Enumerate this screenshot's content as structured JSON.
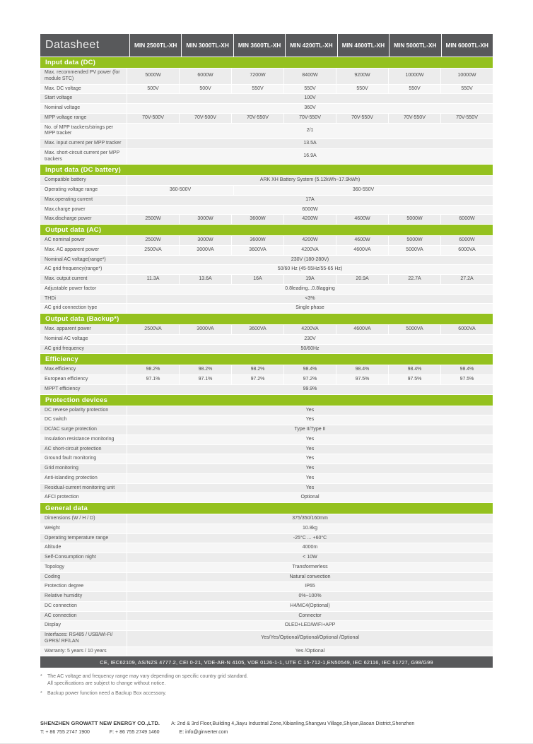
{
  "header": {
    "title": "Datasheet",
    "models": [
      "MIN 2500TL-XH",
      "MIN 3000TL-XH",
      "MIN 3600TL-XH",
      "MIN 4200TL-XH",
      "MIN 4600TL-XH",
      "MIN 5000TL-XH",
      "MIN 6000TL-XH"
    ]
  },
  "colors": {
    "accent_green": "#94c11e",
    "header_gray": "#58595b",
    "row_stripe_dark": "#ececec",
    "row_stripe_light": "#f6f6f6"
  },
  "sections": [
    {
      "title": "Input data (DC)",
      "rows": [
        {
          "label": "Max. recommended PV power (for module STC)",
          "type": "each",
          "values": [
            "5000W",
            "6000W",
            "7200W",
            "8400W",
            "9200W",
            "10000W",
            "10000W"
          ]
        },
        {
          "label": "Max. DC voltage",
          "type": "each",
          "values": [
            "500V",
            "500V",
            "550V",
            "550V",
            "550V",
            "550V",
            "550V"
          ]
        },
        {
          "label": "Start voltage",
          "type": "span",
          "values": [
            "100V"
          ]
        },
        {
          "label": "Nominal voltage",
          "type": "span",
          "values": [
            "360V"
          ]
        },
        {
          "label": "MPP voltage range",
          "type": "each",
          "values": [
            "70V-500V",
            "70V-500V",
            "70V-550V",
            "70V-550V",
            "70V-550V",
            "70V-550V",
            "70V-550V"
          ]
        },
        {
          "label": "No. of MPP trackers/strings per MPP tracker",
          "type": "span",
          "values": [
            "2/1"
          ]
        },
        {
          "label": "Max. input current per MPP tracker",
          "type": "span",
          "values": [
            "13.5A"
          ]
        },
        {
          "label": "Max. short-circuit current per MPP trackers",
          "type": "span",
          "values": [
            "16.9A"
          ]
        }
      ]
    },
    {
      "title": "Input data (DC battery)",
      "rows": [
        {
          "label": "Compatible battery",
          "type": "span",
          "values": [
            "ARK XH Battery System (5.12kWh~17.9kWh)"
          ]
        },
        {
          "label": "Operating voltage range",
          "type": "split",
          "spans": [
            2,
            5
          ],
          "values": [
            "360-500V",
            "360-550V"
          ]
        },
        {
          "label": "Max.operating current",
          "type": "span",
          "values": [
            "17A"
          ]
        },
        {
          "label": "Max.charge power",
          "type": "span",
          "values": [
            "6000W"
          ]
        },
        {
          "label": "Max.discharge power",
          "type": "each",
          "values": [
            "2500W",
            "3000W",
            "3600W",
            "4200W",
            "4600W",
            "5000W",
            "6000W"
          ]
        }
      ]
    },
    {
      "title": "Output data (AC)",
      "rows": [
        {
          "label": "AC nominal power",
          "type": "each",
          "values": [
            "2500W",
            "3000W",
            "3600W",
            "4200W",
            "4600W",
            "5000W",
            "6000W"
          ]
        },
        {
          "label": "Max. AC apparent power",
          "type": "each",
          "values": [
            "2500VA",
            "3000VA",
            "3600VA",
            "4200VA",
            "4600VA",
            "5000VA",
            "6000VA"
          ]
        },
        {
          "label": "Nominal AC voltage(range*)",
          "type": "span",
          "values": [
            "230V (180-280V)"
          ]
        },
        {
          "label": "AC grid frequency(range*)",
          "type": "span",
          "values": [
            "50/60 Hz (45-55Hz/55-65 Hz)"
          ]
        },
        {
          "label": "Max. output current",
          "type": "each",
          "values": [
            "11.3A",
            "13.6A",
            "16A",
            "19A",
            "20.9A",
            "22.7A",
            "27.2A"
          ]
        },
        {
          "label": "Adjustable power factor",
          "type": "span",
          "values": [
            "0.8leading...0.8lagging"
          ]
        },
        {
          "label": "THDi",
          "type": "span",
          "values": [
            "<3%"
          ]
        },
        {
          "label": "AC grid connection type",
          "type": "span",
          "values": [
            "Single phase"
          ]
        }
      ]
    },
    {
      "title": "Output data (Backup*)",
      "rows": [
        {
          "label": "Max. apparent power",
          "type": "each",
          "values": [
            "2500VA",
            "3000VA",
            "3600VA",
            "4200VA",
            "4600VA",
            "5000VA",
            "6000VA"
          ]
        },
        {
          "label": "Nominal AC voltage",
          "type": "span",
          "values": [
            "230V"
          ]
        },
        {
          "label": "AC grid frequency",
          "type": "span",
          "values": [
            "50/60Hz"
          ]
        }
      ]
    },
    {
      "title": "Efficiency",
      "rows": [
        {
          "label": "Max.efficiency",
          "type": "each",
          "values": [
            "98.2%",
            "98.2%",
            "98.2%",
            "98.4%",
            "98.4%",
            "98.4%",
            "98.4%"
          ]
        },
        {
          "label": "European efficiency",
          "type": "each",
          "values": [
            "97.1%",
            "97.1%",
            "97.2%",
            "97.2%",
            "97.5%",
            "97.5%",
            "97.5%"
          ]
        },
        {
          "label": "MPPT efficiency",
          "type": "span",
          "values": [
            "99.9%"
          ]
        }
      ]
    },
    {
      "title": "Protection devices",
      "rows": [
        {
          "label": "DC revese polarity protection",
          "type": "span",
          "values": [
            "Yes"
          ]
        },
        {
          "label": "DC switch",
          "type": "span",
          "values": [
            "Yes"
          ]
        },
        {
          "label": "DC/AC surge protection",
          "type": "span",
          "values": [
            "Type II/Type II"
          ]
        },
        {
          "label": "Insulation resistance monitoring",
          "type": "span",
          "values": [
            "Yes"
          ]
        },
        {
          "label": "AC short-circuit protection",
          "type": "span",
          "values": [
            "Yes"
          ]
        },
        {
          "label": "Ground fault monitoring",
          "type": "span",
          "values": [
            "Yes"
          ]
        },
        {
          "label": "Grid monitoring",
          "type": "span",
          "values": [
            "Yes"
          ]
        },
        {
          "label": "Anti-islanding protection",
          "type": "span",
          "values": [
            "Yes"
          ]
        },
        {
          "label": "Residual-current monitoring unit",
          "type": "span",
          "values": [
            "Yes"
          ]
        },
        {
          "label": "AFCI protection",
          "type": "span",
          "values": [
            "Optional"
          ]
        }
      ]
    },
    {
      "title": "General data",
      "rows": [
        {
          "label": "Dimensions (W / H / D)",
          "type": "span",
          "values": [
            "375/350/160mm"
          ]
        },
        {
          "label": "Weight",
          "type": "span",
          "values": [
            "10.8kg"
          ]
        },
        {
          "label": "Operating temperature range",
          "type": "span",
          "values": [
            "-25°C ... +60°C"
          ]
        },
        {
          "label": "Altitude",
          "type": "span",
          "values": [
            "4000m"
          ]
        },
        {
          "label": "Self-Consumption night",
          "type": "span",
          "values": [
            "< 10W"
          ]
        },
        {
          "label": "Topology",
          "type": "span",
          "values": [
            "Transformerless"
          ]
        },
        {
          "label": "Coding",
          "type": "span",
          "values": [
            "Natural convection"
          ]
        },
        {
          "label": "Protection degree",
          "type": "span",
          "values": [
            "IP65"
          ]
        },
        {
          "label": "Relative humidity",
          "type": "span",
          "values": [
            "0%~100%"
          ]
        },
        {
          "label": "DC connection",
          "type": "span",
          "values": [
            "H4/MC4(Optional)"
          ]
        },
        {
          "label": "AC connection",
          "type": "span",
          "values": [
            "Connector"
          ]
        },
        {
          "label": "Display",
          "type": "span",
          "values": [
            "OLED+LED/WIFI+APP"
          ]
        },
        {
          "label": "Interfaces: RS485 / USB/Wi-Fi/ GPRS/ RF/LAN",
          "type": "span",
          "values": [
            "Yes/Yes/Optional/Optional/Optional /Optional"
          ]
        },
        {
          "label": "Warranty: 5 years / 10 years",
          "type": "span",
          "values": [
            "Yes /Optional"
          ]
        }
      ]
    }
  ],
  "certifications": "CE, IEC62109, AS/NZS 4777.2, CEI 0-21, VDE-AR-N 4105, VDE 0126-1-1, UTE C 15-712-1,EN50549, IEC 62116, IEC 61727, G98/G99",
  "footnotes": [
    {
      "mark": "*",
      "lines": [
        "The AC voltage and frequency range may vary depending on specific country grid standard.",
        "All specifications are subject to change without notice."
      ]
    },
    {
      "mark": "*",
      "lines": [
        "Backup power function need a Backup Box accessory."
      ]
    }
  ],
  "footer": {
    "company": "SHENZHEN GROWATT NEW ENERGY CO.,LTD.",
    "address": "A: 2nd & 3rd Floor,Building 4,Jiayu Industrial Zone,Xibianling,Shangwu Village,Shiyan,Baoan District,Shenzhen",
    "tel": "T:  + 86 755 2747 1900",
    "fax": "F:  + 86 755 2749 1460",
    "email": "E:  info@ginverter.com"
  }
}
